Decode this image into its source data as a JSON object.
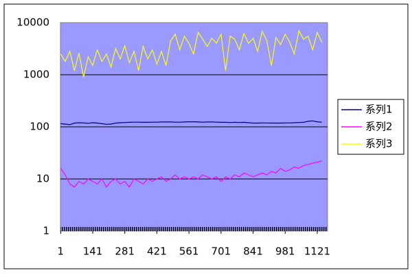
{
  "chart_data": {
    "type": "line",
    "yscale": "log",
    "grid": true,
    "legend": "right",
    "plot_background": "#9999ff",
    "x": [
      1,
      21,
      41,
      61,
      81,
      101,
      121,
      141,
      161,
      181,
      201,
      221,
      241,
      261,
      281,
      301,
      321,
      341,
      361,
      381,
      401,
      421,
      441,
      461,
      481,
      501,
      521,
      541,
      561,
      581,
      601,
      621,
      641,
      661,
      681,
      701,
      721,
      741,
      761,
      781,
      801,
      821,
      841,
      861,
      881,
      901,
      921,
      941,
      961,
      981,
      1001,
      1021,
      1041,
      1061,
      1081,
      1101,
      1121,
      1141
    ],
    "xlim": [
      0,
      1166
    ],
    "xticks": [
      1,
      141,
      281,
      421,
      561,
      701,
      841,
      981,
      1121
    ],
    "ylim": [
      1,
      10000
    ],
    "yticks": [
      1,
      10,
      100,
      1000,
      10000
    ],
    "series": [
      {
        "name": "系列1",
        "color": "#000080",
        "values": [
          115,
          113,
          110,
          118,
          120,
          119,
          117,
          120,
          118,
          115,
          112,
          113,
          118,
          120,
          121,
          122,
          123,
          123,
          122,
          122,
          123,
          123,
          124,
          124,
          124,
          123,
          123,
          124,
          125,
          125,
          124,
          123,
          124,
          124,
          123,
          122,
          122,
          121,
          122,
          121,
          122,
          120,
          118,
          118,
          119,
          119,
          118,
          118,
          118,
          119,
          119,
          120,
          121,
          122,
          128,
          130,
          125,
          123
        ]
      },
      {
        "name": "系列2",
        "color": "#ff00ff",
        "values": [
          16,
          12,
          8,
          7,
          9,
          8,
          10,
          9,
          8,
          10,
          7,
          9,
          10,
          8,
          9,
          7,
          10,
          9,
          8,
          10,
          9,
          10,
          11,
          9,
          10,
          12,
          10,
          11,
          10,
          11,
          10,
          12,
          11,
          10,
          11,
          9,
          11,
          10,
          12,
          11,
          13,
          12,
          11,
          12,
          13,
          12,
          14,
          13,
          16,
          14,
          15,
          17,
          16,
          18,
          19,
          20,
          21,
          22
        ]
      },
      {
        "name": "系列3",
        "color": "#ffff00",
        "values": [
          2500,
          1800,
          2800,
          1200,
          2600,
          900,
          2200,
          1500,
          3000,
          1800,
          2500,
          1400,
          3200,
          2000,
          3600,
          1700,
          2800,
          1200,
          3500,
          2000,
          3000,
          1600,
          2800,
          1500,
          4500,
          6000,
          3000,
          5500,
          4000,
          2500,
          6500,
          4800,
          3500,
          5000,
          4000,
          6000,
          1200,
          5500,
          4800,
          3000,
          6200,
          4000,
          5000,
          2800,
          6800,
          4500,
          1500,
          5200,
          3800,
          6000,
          4200,
          2500,
          7000,
          4800,
          5500,
          3000,
          6500,
          4200
        ]
      }
    ]
  }
}
